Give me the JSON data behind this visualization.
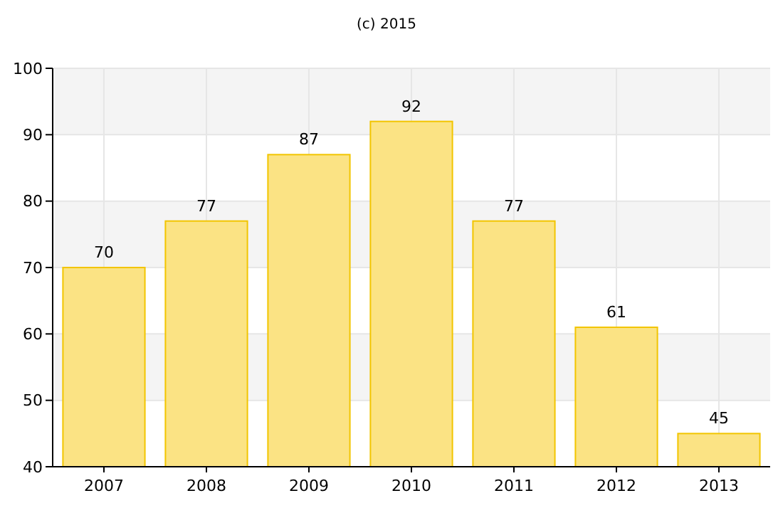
{
  "chart_data": {
    "type": "bar",
    "title": "(c) 2015",
    "categories": [
      "2007",
      "2008",
      "2009",
      "2010",
      "2011",
      "2012",
      "2013"
    ],
    "values": [
      70,
      77,
      87,
      92,
      77,
      61,
      45
    ],
    "color": "#fbe384",
    "ylim": [
      40,
      100
    ],
    "yticks": [
      40,
      50,
      60,
      70,
      80,
      90,
      100
    ],
    "grid": true,
    "data_labels": true
  }
}
